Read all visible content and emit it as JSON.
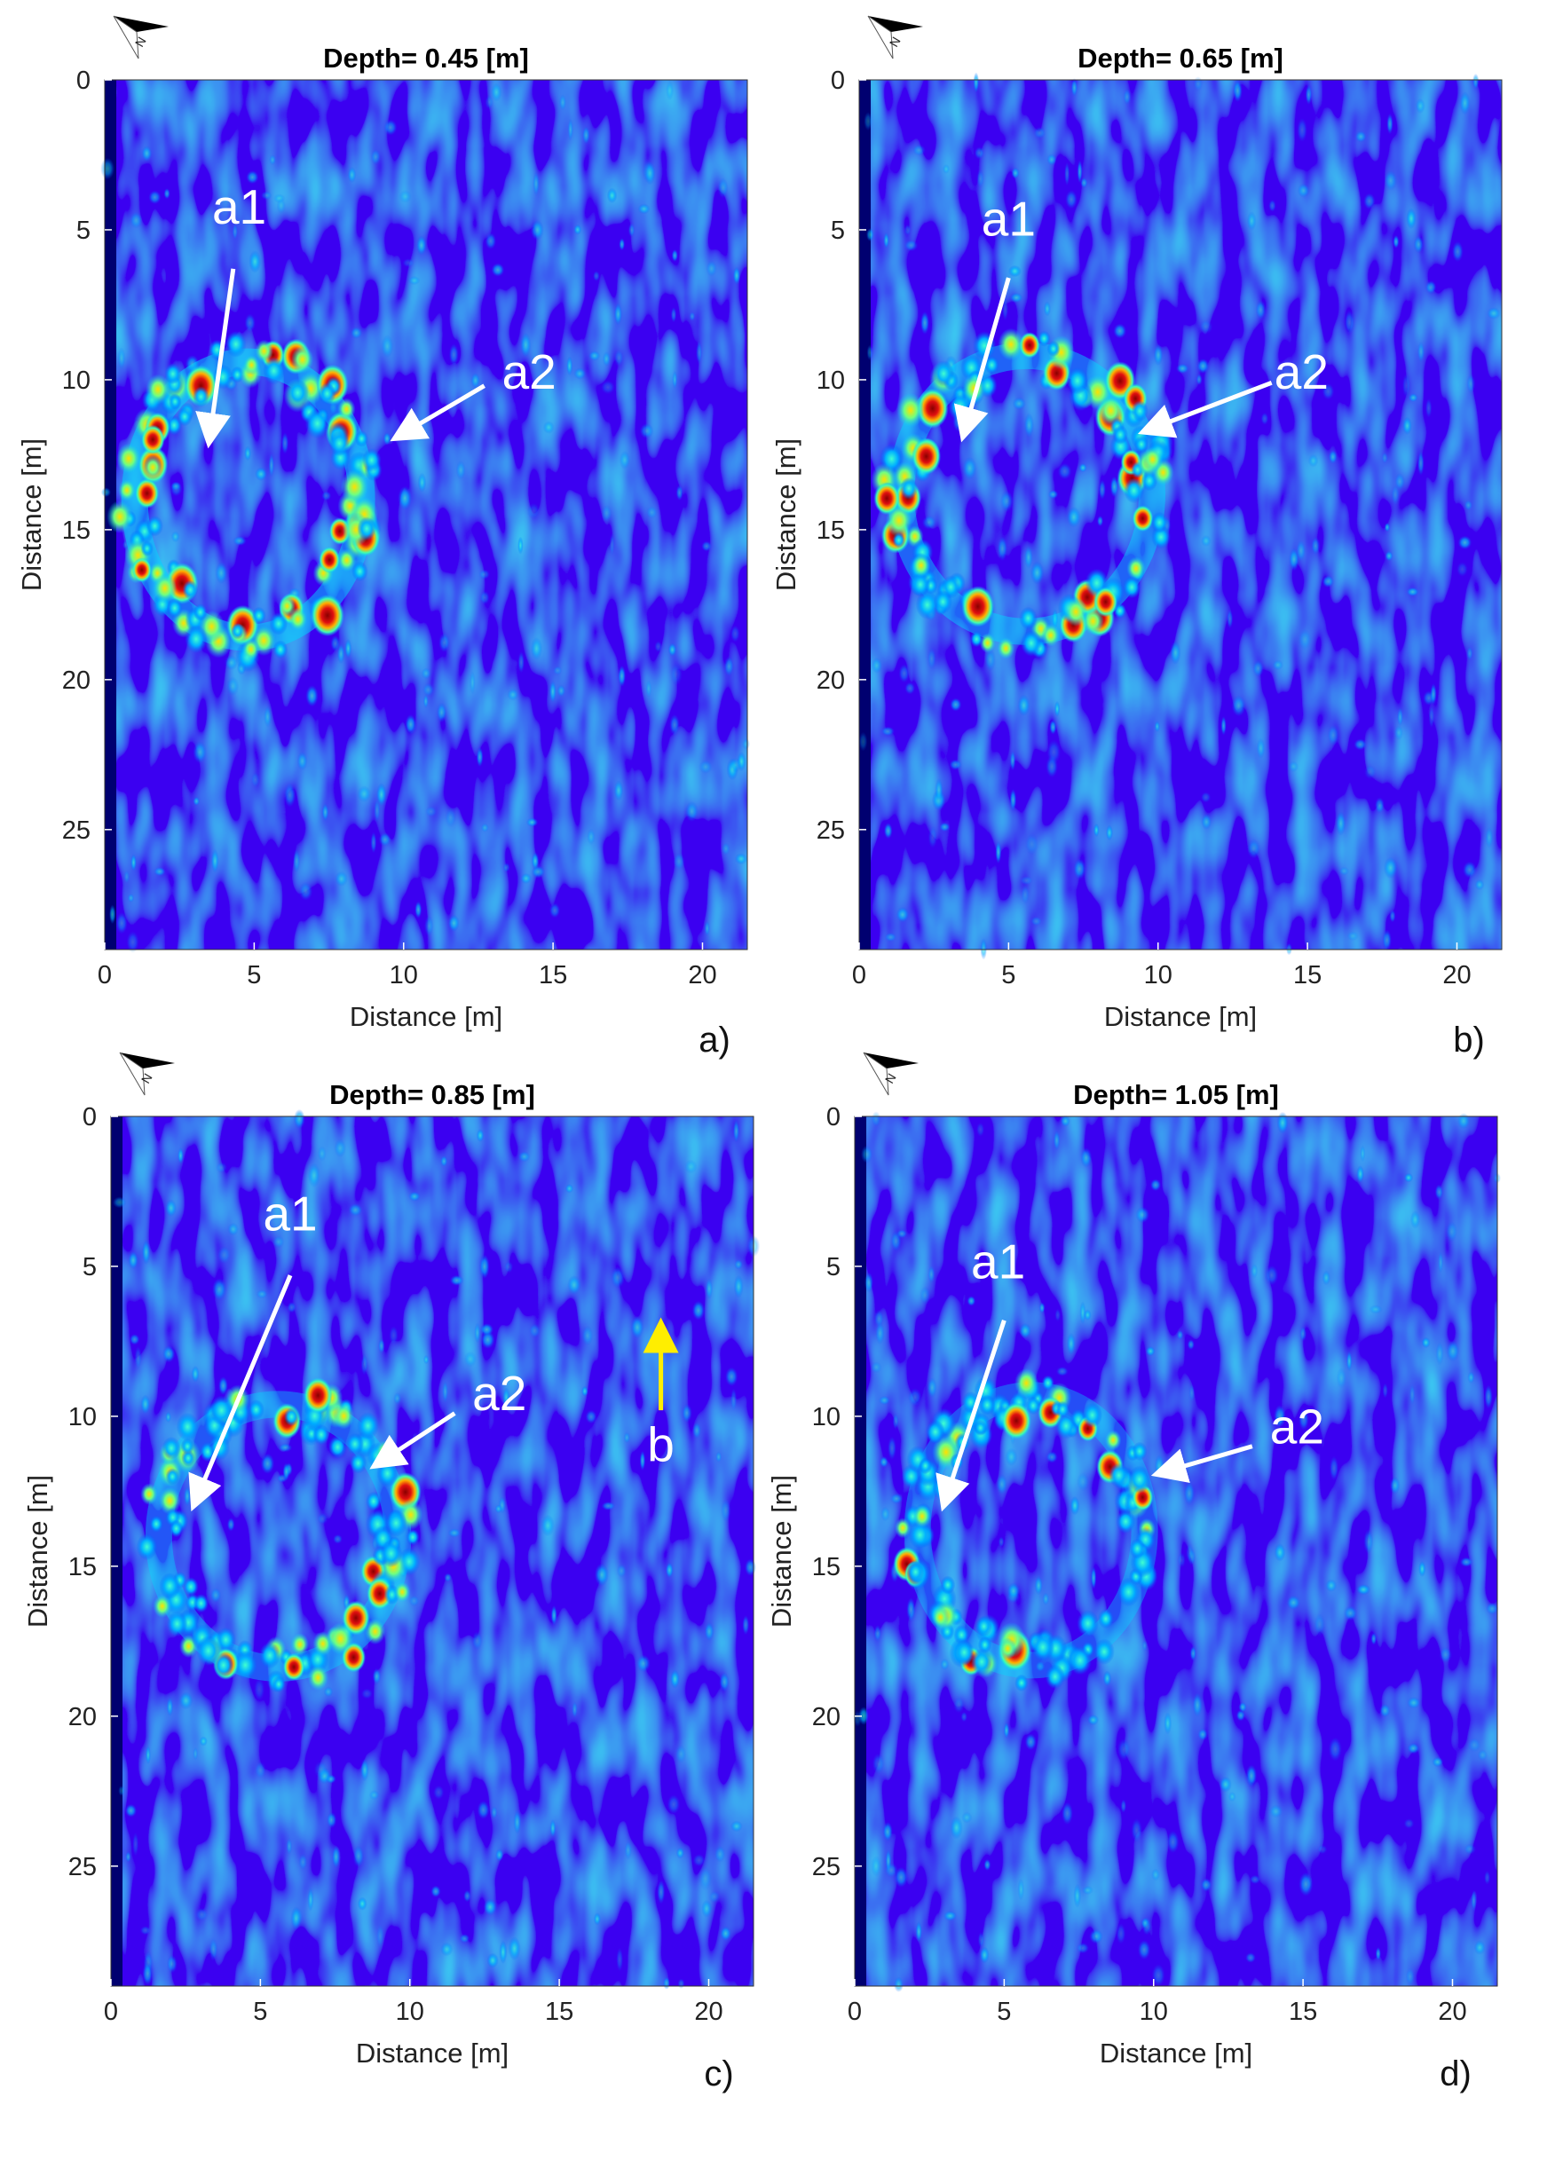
{
  "colors": {
    "noise_dark": "#00009a",
    "noise_blue": "#0a2ee6",
    "arrow_white": "#ffffff",
    "arrow_yellow": "#ffee00",
    "hot": "#b40000"
  },
  "chart_data": [
    {
      "type": "heatmap",
      "panel_label": "a)",
      "title": "Depth= 0.45 [m]",
      "xlabel": "Distance [m]",
      "ylabel": "Distance [m]",
      "xlim": [
        0,
        21.5
      ],
      "ylim": [
        0,
        29
      ],
      "y_reversed": true,
      "xticks": [
        0,
        5,
        10,
        15,
        20
      ],
      "yticks": [
        0,
        5,
        10,
        15,
        20,
        25
      ],
      "ring": {
        "cx": 4.8,
        "cy": 14.0,
        "rx": 3.8,
        "ry": 4.6,
        "intensity": 1.0
      },
      "annotations": [
        {
          "label": "a1",
          "text_x": 4.5,
          "text_y": 4.8,
          "arrow_from": [
            4.3,
            6.3
          ],
          "arrow_to": [
            3.5,
            12.0
          ],
          "color": "white"
        },
        {
          "label": "a2",
          "text_x": 14.2,
          "text_y": 10.3,
          "arrow_from": [
            12.7,
            10.2
          ],
          "arrow_to": [
            9.8,
            11.9
          ],
          "color": "white"
        }
      ]
    },
    {
      "type": "heatmap",
      "panel_label": "b)",
      "title": "Depth= 0.65 [m]",
      "xlabel": "Distance [m]",
      "ylabel": "Distance [m]",
      "xlim": [
        0,
        21.5
      ],
      "ylim": [
        0,
        29
      ],
      "y_reversed": true,
      "xticks": [
        0,
        5,
        10,
        15,
        20
      ],
      "yticks": [
        0,
        5,
        10,
        15,
        20,
        25
      ],
      "ring": {
        "cx": 5.6,
        "cy": 13.8,
        "rx": 4.2,
        "ry": 4.6,
        "intensity": 0.85
      },
      "annotations": [
        {
          "label": "a1",
          "text_x": 5.0,
          "text_y": 5.2,
          "arrow_from": [
            5.0,
            6.6
          ],
          "arrow_to": [
            3.5,
            11.8
          ],
          "color": "white"
        },
        {
          "label": "a2",
          "text_x": 14.8,
          "text_y": 10.3,
          "arrow_from": [
            13.8,
            10.1
          ],
          "arrow_to": [
            9.6,
            11.7
          ],
          "color": "white"
        }
      ]
    },
    {
      "type": "heatmap",
      "panel_label": "c)",
      "title": "Depth= 0.85 [m]",
      "xlabel": "Distance [m]",
      "ylabel": "Distance [m]",
      "xlim": [
        0,
        21.5
      ],
      "ylim": [
        0,
        29
      ],
      "y_reversed": true,
      "xticks": [
        0,
        5,
        10,
        15,
        20
      ],
      "yticks": [
        0,
        5,
        10,
        15,
        20,
        25
      ],
      "ring": {
        "cx": 5.6,
        "cy": 14.0,
        "rx": 4.0,
        "ry": 4.4,
        "intensity": 0.6
      },
      "annotations": [
        {
          "label": "a1",
          "text_x": 6.0,
          "text_y": 3.8,
          "arrow_from": [
            6.0,
            5.3
          ],
          "arrow_to": [
            2.8,
            12.9
          ],
          "color": "white"
        },
        {
          "label": "a2",
          "text_x": 13.0,
          "text_y": 9.8,
          "arrow_from": [
            11.5,
            9.9
          ],
          "arrow_to": [
            8.9,
            11.6
          ],
          "color": "white"
        },
        {
          "label": "b",
          "text_x": 18.4,
          "text_y": 11.5,
          "arrow_from": [
            18.4,
            9.8
          ],
          "arrow_to": [
            18.4,
            7.0
          ],
          "color": "yellow"
        }
      ]
    },
    {
      "type": "heatmap",
      "panel_label": "d)",
      "title": "Depth= 1.05 [m]",
      "xlabel": "Distance [m]",
      "ylabel": "Distance [m]",
      "xlim": [
        0,
        21.5
      ],
      "ylim": [
        0,
        29
      ],
      "y_reversed": true,
      "xticks": [
        0,
        5,
        10,
        15,
        20
      ],
      "yticks": [
        0,
        5,
        10,
        15,
        20,
        25
      ],
      "ring": {
        "cx": 5.9,
        "cy": 13.8,
        "rx": 3.8,
        "ry": 4.5,
        "intensity": 0.45
      },
      "annotations": [
        {
          "label": "a1",
          "text_x": 4.8,
          "text_y": 5.4,
          "arrow_from": [
            5.0,
            6.8
          ],
          "arrow_to": [
            3.0,
            12.9
          ],
          "color": "white"
        },
        {
          "label": "a2",
          "text_x": 14.8,
          "text_y": 10.9,
          "arrow_from": [
            13.3,
            11.0
          ],
          "arrow_to": [
            10.2,
            11.9
          ],
          "color": "white"
        }
      ]
    }
  ]
}
